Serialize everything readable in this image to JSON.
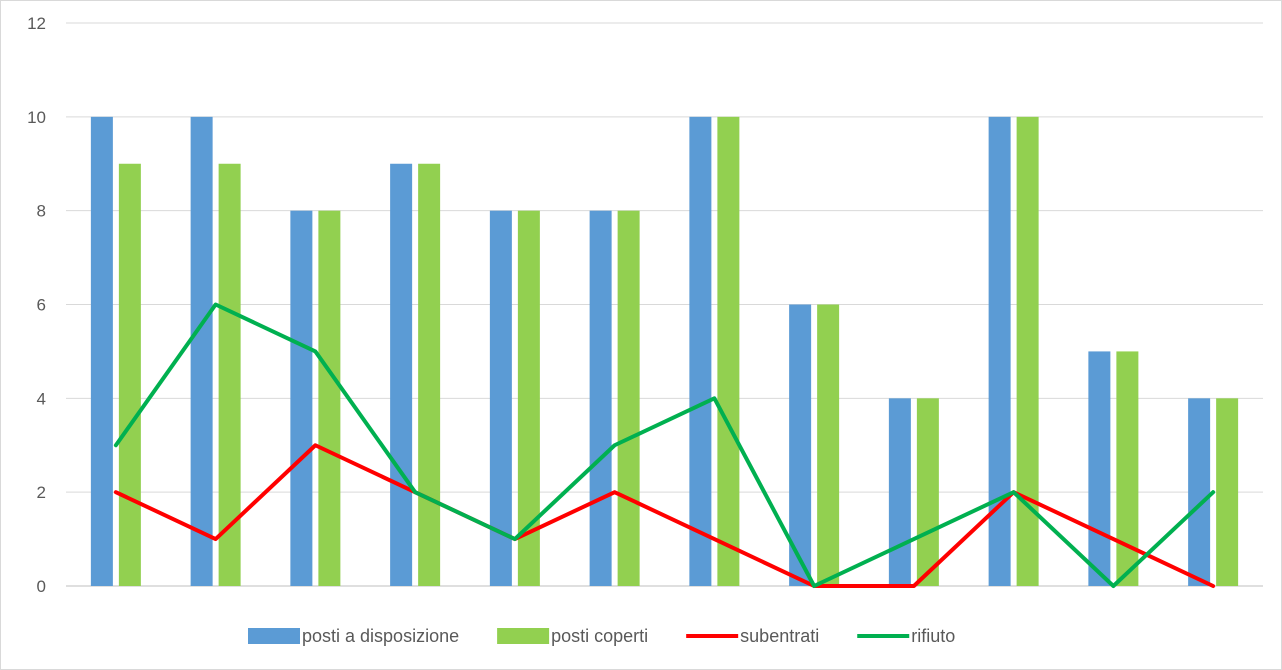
{
  "chart_data": {
    "type": "bar",
    "title": "",
    "xlabel": "",
    "ylabel": "",
    "ylim": [
      0,
      12
    ],
    "yticks": [
      0,
      2,
      4,
      6,
      8,
      10,
      12
    ],
    "grid": true,
    "legend_position": "bottom",
    "categories": [
      "",
      "",
      "",
      "",
      "",
      "",
      "",
      "",
      "",
      "",
      "",
      ""
    ],
    "series": [
      {
        "name": "posti a disposizione",
        "kind": "bar",
        "color": "#5b9bd5",
        "values": [
          10,
          10,
          8,
          9,
          8,
          8,
          10,
          6,
          4,
          10,
          5,
          4
        ]
      },
      {
        "name": "posti coperti",
        "kind": "bar",
        "color": "#92d050",
        "values": [
          9,
          9,
          8,
          9,
          8,
          8,
          10,
          6,
          4,
          10,
          5,
          4
        ]
      },
      {
        "name": "subentrati",
        "kind": "line",
        "color": "#ff0000",
        "values": [
          2,
          1,
          3,
          2,
          1,
          2,
          1,
          0,
          0,
          2,
          1,
          0
        ]
      },
      {
        "name": "rifiuto",
        "kind": "line",
        "color": "#00b050",
        "values": [
          3,
          6,
          5,
          2,
          1,
          3,
          4,
          0,
          1,
          2,
          0,
          2
        ]
      }
    ]
  }
}
